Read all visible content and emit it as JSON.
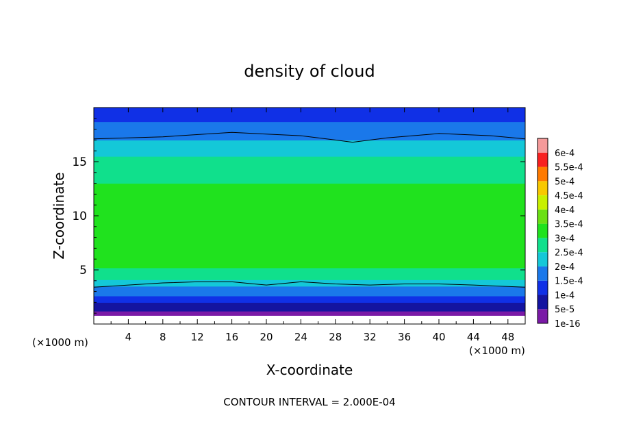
{
  "chart_data": {
    "type": "heatmap",
    "title": "density of cloud",
    "xlabel": "X-coordinate",
    "ylabel": "Z-coordinate",
    "x_unit_left": "(×1000 m)",
    "x_unit_right": "(×1000 m)",
    "footer": "CONTOUR INTERVAL = 2.000E-04",
    "xlim": [
      0,
      50
    ],
    "ylim": [
      0,
      20
    ],
    "x_ticks": [
      4,
      8,
      12,
      16,
      20,
      24,
      28,
      32,
      36,
      40,
      44,
      48
    ],
    "x_tick_labels": [
      "4",
      "8",
      "12",
      "16",
      "20",
      "24",
      "28",
      "32",
      "36",
      "40",
      "44",
      "48"
    ],
    "y_ticks": [
      5,
      10,
      15
    ],
    "y_tick_labels": [
      "5",
      "10",
      "15"
    ],
    "colorbar": {
      "labels": [
        "1e-16",
        "5e-5",
        "1e-4",
        "1.5e-4",
        "2e-4",
        "2.5e-4",
        "3e-4",
        "3.5e-4",
        "4e-4",
        "4.5e-4",
        "5e-4",
        "5.5e-4",
        "6e-4"
      ],
      "values": [
        1e-16,
        5e-05,
        0.0001,
        0.00015,
        0.0002,
        0.00025,
        0.0003,
        0.00035,
        0.0004,
        0.00045,
        0.0005,
        0.00055,
        0.0006
      ],
      "colors": [
        "#7a1aa6",
        "#1414a0",
        "#1030e6",
        "#1a78ea",
        "#14c8d8",
        "#10e08c",
        "#20e21e",
        "#6ae014",
        "#c8f000",
        "#f8c800",
        "#ff7a00",
        "#f82020",
        "#f59a9a"
      ]
    },
    "vertical_profile": {
      "z": [
        0.8,
        1.2,
        1.6,
        2.0,
        2.5,
        3.0,
        3.5,
        4.5,
        6.0,
        8.0,
        10.0,
        12.0,
        14.0,
        16.0,
        17.0,
        18.0,
        19.0,
        19.5,
        20.0
      ],
      "density": [
        2e-05,
        5e-05,
        8e-05,
        0.0001,
        0.00014,
        0.00018,
        0.0002,
        0.00028,
        0.00032,
        0.00034,
        0.00034,
        0.00032,
        0.00028,
        0.00024,
        0.0002,
        0.00017,
        0.00014,
        0.00012,
        0.0001
      ]
    },
    "contour_2e-4": {
      "upper": {
        "x": [
          0,
          8,
          16,
          24,
          28,
          30,
          34,
          40,
          46,
          50
        ],
        "z": [
          17.1,
          17.3,
          17.7,
          17.4,
          17.0,
          16.8,
          17.2,
          17.6,
          17.4,
          17.1
        ]
      },
      "lower": {
        "x": [
          0,
          4,
          8,
          12,
          16,
          20,
          24,
          28,
          32,
          36,
          40,
          44,
          50
        ],
        "z": [
          3.4,
          3.6,
          3.8,
          3.9,
          3.9,
          3.6,
          3.9,
          3.7,
          3.6,
          3.7,
          3.7,
          3.6,
          3.4
        ]
      }
    }
  }
}
